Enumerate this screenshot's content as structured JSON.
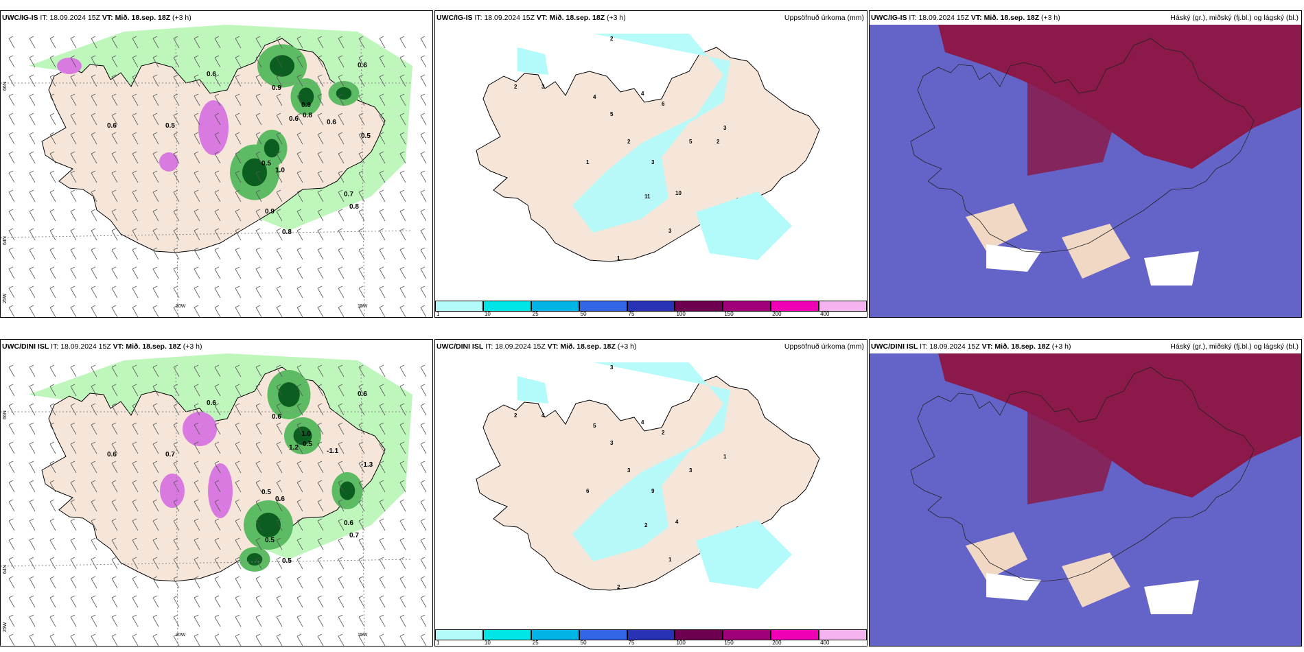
{
  "colors": {
    "land": "#f5e6d9",
    "sea": "#ffffff",
    "precip_light": "#b8f5b5",
    "precip_mid": "#5dbb63",
    "precip_dark": "#0b5e1f",
    "snow": "#d97ae0",
    "accum_light": "#b3fafa",
    "cloud_low": "#6464c8",
    "cloud_high": "#8b1a4a",
    "cloud_mid": "#f0d8c5"
  },
  "rows": [
    {
      "model": "UWC/IG-IS",
      "it_label": "IT:",
      "it_value": "18.09.2024 15Z",
      "vt_label": "VT:",
      "vt_value": "Mið. 18.sep. 18Z",
      "lead": "(+3 h)",
      "accum_title": "Uppsöfnuð úrkoma (mm)",
      "cloud_title": "Háský (gr.), miðský (fj.bl.) og lágský (bl.)",
      "precip_values": [
        "0.6",
        "0.5",
        "0.6",
        "0.9",
        "0.6",
        "0.8",
        "0.6",
        "0.5",
        "0.7",
        "0.8",
        "0.5",
        "0.9",
        "0.8",
        "1.0",
        "0.6",
        "0.9"
      ],
      "accum_values": [
        "2",
        "3",
        "2",
        "4",
        "5",
        "4",
        "6",
        "2",
        "3",
        "1",
        "10",
        "11",
        "5",
        "3",
        "3",
        "1",
        "2"
      ]
    },
    {
      "model": "UWC/DINI ISL",
      "it_label": "IT:",
      "it_value": "18.09.2024 15Z",
      "vt_label": "VT:",
      "vt_value": "Mið. 18.sep. 18Z",
      "lead": "(+3 h)",
      "accum_title": "Uppsöfnuð úrkoma (mm)",
      "cloud_title": "Háský (gr.), miðský (fj.bl.) og lágský (bl.)",
      "precip_values": [
        "0.6",
        "0.7",
        "0.6",
        "0.6",
        "1.2",
        "0.5",
        "-1.1",
        "-1.3",
        "0.6",
        "0.7",
        "0.5",
        "0.5",
        "0.5",
        "0.6",
        "0.6",
        "1.0"
      ],
      "accum_values": [
        "2",
        "4",
        "3",
        "5",
        "3",
        "4",
        "2",
        "3",
        "9",
        "6",
        "4",
        "2",
        "3",
        "1",
        "1",
        "2"
      ]
    }
  ],
  "axes": {
    "lat_labels": [
      "66N",
      "64N",
      "25W"
    ],
    "lon_labels": [
      "20W",
      "15W"
    ]
  },
  "legend": {
    "ticks": [
      "1",
      "10",
      "25",
      "50",
      "75",
      "100",
      "150",
      "200",
      "400"
    ],
    "colors": [
      "#b3fafa",
      "#00e6e6",
      "#00b4e6",
      "#3264e6",
      "#2832b4",
      "#6e0050",
      "#a0007a",
      "#f000b4",
      "#f5b4f0"
    ]
  }
}
